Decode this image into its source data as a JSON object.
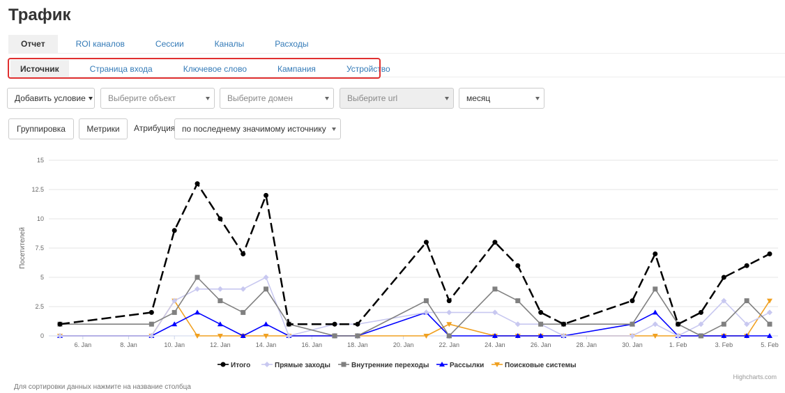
{
  "page": {
    "title": "Трафик"
  },
  "tabs_primary": [
    {
      "label": "Отчет",
      "active": true
    },
    {
      "label": "ROI каналов",
      "active": false
    },
    {
      "label": "Сессии",
      "active": false
    },
    {
      "label": "Каналы",
      "active": false
    },
    {
      "label": "Расходы",
      "active": false
    }
  ],
  "tabs_secondary": [
    {
      "label": "Источник",
      "active": true
    },
    {
      "label": "Страница входа",
      "active": false
    },
    {
      "label": "Ключевое слово",
      "active": false
    },
    {
      "label": "Кампания",
      "active": false
    },
    {
      "label": "Устройство",
      "active": false
    }
  ],
  "filters": {
    "add_condition": "Добавить условие",
    "object_placeholder": "Выберите объект",
    "domain_placeholder": "Выберите домен",
    "url_placeholder": "Выберите url",
    "period": "месяц"
  },
  "options": {
    "grouping": "Группировка",
    "metrics": "Метрики",
    "attribution_label": "Атрибуция",
    "attribution_value": "по последнему значимому источнику"
  },
  "footer": {
    "credits": "Highcharts.com",
    "sort_hint": "Для сортировки данных нажмите на название столбца"
  },
  "chart_data": {
    "type": "line",
    "title": "",
    "xlabel": "",
    "ylabel": "Посетителей",
    "ylim": [
      0,
      15
    ],
    "y_ticks": [
      "0",
      "2.5",
      "5",
      "7.5",
      "10",
      "12.5",
      "15"
    ],
    "x_ticks": [
      "6. Jan",
      "8. Jan",
      "10. Jan",
      "12. Jan",
      "14. Jan",
      "16. Jan",
      "18. Jan",
      "20. Jan",
      "22. Jan",
      "24. Jan",
      "26. Jan",
      "28. Jan",
      "30. Jan",
      "1. Feb",
      "3. Feb",
      "5. Feb"
    ],
    "x": [
      "5. Jan",
      "9. Jan",
      "10. Jan",
      "11. Jan",
      "12. Jan",
      "13. Jan",
      "14. Jan",
      "15. Jan",
      "17. Jan",
      "18. Jan",
      "21. Jan",
      "22. Jan",
      "24. Jan",
      "25. Jan",
      "26. Jan",
      "27. Jan",
      "30. Jan",
      "31. Jan",
      "1. Feb",
      "2. Feb",
      "3. Feb",
      "4. Feb",
      "5. Feb"
    ],
    "grid": true,
    "legend": "bottom-center",
    "series": [
      {
        "name": "Итого",
        "color": "#000000",
        "dash": true,
        "marker": "circle",
        "values": [
          1,
          2,
          9,
          13,
          10,
          7,
          12,
          1,
          1,
          1,
          8,
          3,
          8,
          6,
          2,
          1,
          3,
          7,
          1,
          2,
          5,
          6,
          7
        ]
      },
      {
        "name": "Прямые заходы",
        "color": "#c8c8f0",
        "dash": false,
        "marker": "diamond",
        "values": [
          0,
          0,
          3,
          4,
          4,
          4,
          5,
          0,
          1,
          1,
          2,
          2,
          2,
          1,
          1,
          0,
          0,
          1,
          0,
          1,
          3,
          1,
          2
        ]
      },
      {
        "name": "Внутренние переходы",
        "color": "#808080",
        "dash": false,
        "marker": "square",
        "values": [
          1,
          1,
          2,
          5,
          3,
          2,
          4,
          1,
          0,
          0,
          3,
          0,
          4,
          3,
          1,
          1,
          1,
          4,
          1,
          0,
          1,
          3,
          1
        ]
      },
      {
        "name": "Рассылки",
        "color": "#0000ff",
        "dash": false,
        "marker": "triangle",
        "values": [
          0,
          0,
          1,
          2,
          1,
          0,
          1,
          0,
          0,
          0,
          2,
          0,
          0,
          0,
          0,
          0,
          1,
          2,
          0,
          0,
          0,
          0,
          0
        ]
      },
      {
        "name": "Поисковые системы",
        "color": "#f0a020",
        "dash": false,
        "marker": "triangle-down",
        "values": [
          0,
          0,
          3,
          0,
          0,
          0,
          0,
          0,
          0,
          0,
          0,
          1,
          0,
          0,
          0,
          0,
          0,
          0,
          0,
          0,
          0,
          0,
          3
        ]
      }
    ]
  }
}
